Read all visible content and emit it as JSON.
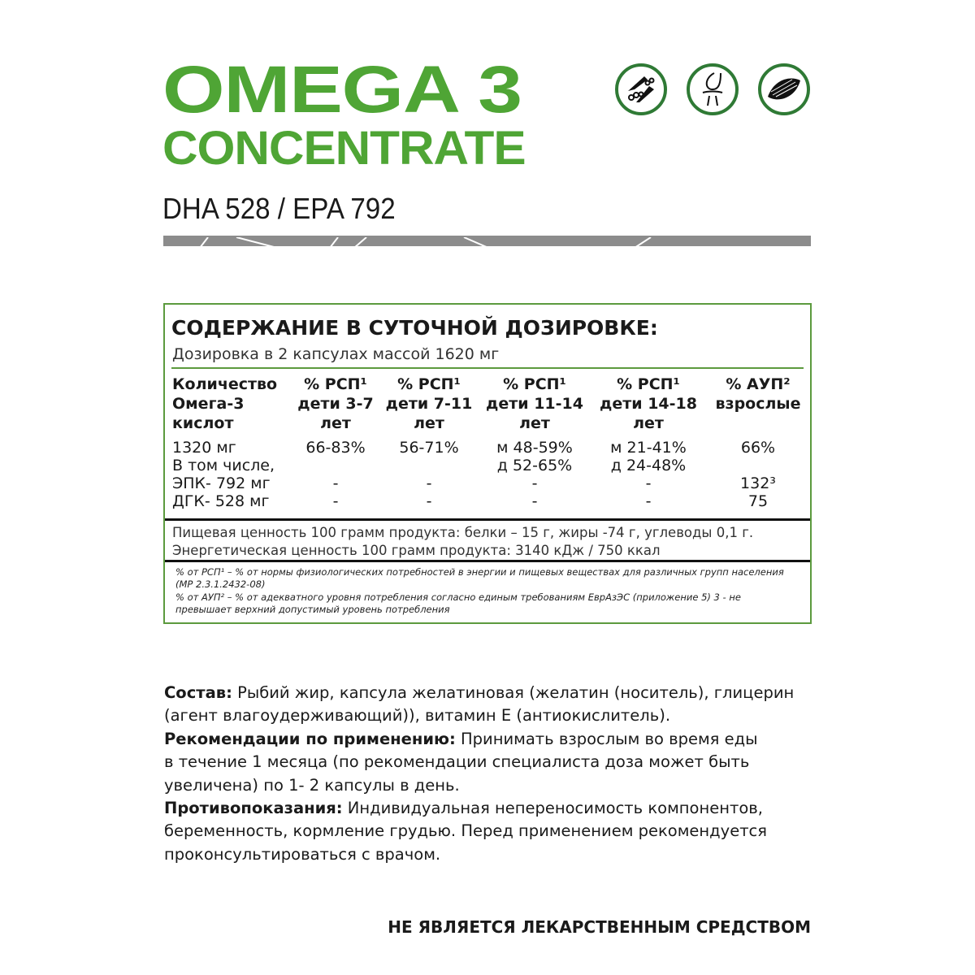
{
  "brand": {
    "title_line1": "OMEGA 3",
    "title_line2": "CONCENTRATE",
    "subtitle": "DHA 528 / EPA 792",
    "brand_color": "#4fa535"
  },
  "icons": [
    "blood-vessel-icon",
    "joint-icon",
    "muscle-icon"
  ],
  "table": {
    "heading": "СОДЕРЖАНИЕ В СУТОЧНОЙ ДОЗИРОВКЕ:",
    "dosage": "Дозировка в 2 капсулах массой 1620 мг",
    "headers": [
      [
        "Количество",
        "Омега-3",
        "кислот"
      ],
      [
        "% РСП¹",
        "дети 3-7",
        "лет"
      ],
      [
        "% РСП¹",
        "дети 7-11",
        "лет"
      ],
      [
        "% РСП¹",
        "дети 11-14",
        "лет"
      ],
      [
        "% РСП¹",
        "дети 14-18",
        "лет"
      ],
      [
        "% АУП²",
        "взрослые",
        ""
      ]
    ],
    "rows": [
      [
        "1320 мг",
        "66-83%",
        "56-71%",
        "м 48-59%",
        "м 21-41%",
        "66%"
      ],
      [
        "В том числе,",
        "",
        "",
        "д 52-65%",
        "д 24-48%",
        ""
      ],
      [
        "ЭПК- 792 мг",
        "-",
        "-",
        "-",
        "-",
        "132³"
      ],
      [
        "ДГК- 528 мг",
        "-",
        "-",
        "-",
        "-",
        "75"
      ]
    ],
    "nutrition": "Пищевая ценность 100 грамм продукта: белки – 15 г, жиры -74 г, углеводы 0,1 г.",
    "energy": "Энергетическая ценность  100 грамм продукта: 3140 кДж / 750 ккал",
    "footnote1": "% от РСП¹ – % от нормы физиологических потребностей в энергии и пищевых веществах для различных групп населения (МР 2.3.1.2432-08)",
    "footnote2": "% от АУП² – % от адекватного уровня потребления согласно единым требованиям ЕврАзЭС (приложение 5) 3 - не превышает верхний допустимый уровень потребления"
  },
  "info": {
    "composition_label": "Состав:",
    "composition": " Рыбий жир, капсула желатиновая (желатин (носитель), глицерин (агент влагоудерживающий)), витамин Е (антиокислитель).",
    "usage_label": "Рекомендации по применению:",
    "usage": " Принимать взрослым во время еды в течение 1 месяца (по рекомендации специалиста доза может быть увеличена) по 1- 2 капсулы в день.",
    "contra_label": "Противопоказания:",
    "contra": " Индивидуальная непереносимость компонентов, беременность, кормление грудью. Перед применением рекомендуется проконсультироваться с врачом."
  },
  "disclaimer": "НЕ ЯВЛЯЕТСЯ ЛЕКАРСТВЕННЫМ СРЕДСТВОМ"
}
